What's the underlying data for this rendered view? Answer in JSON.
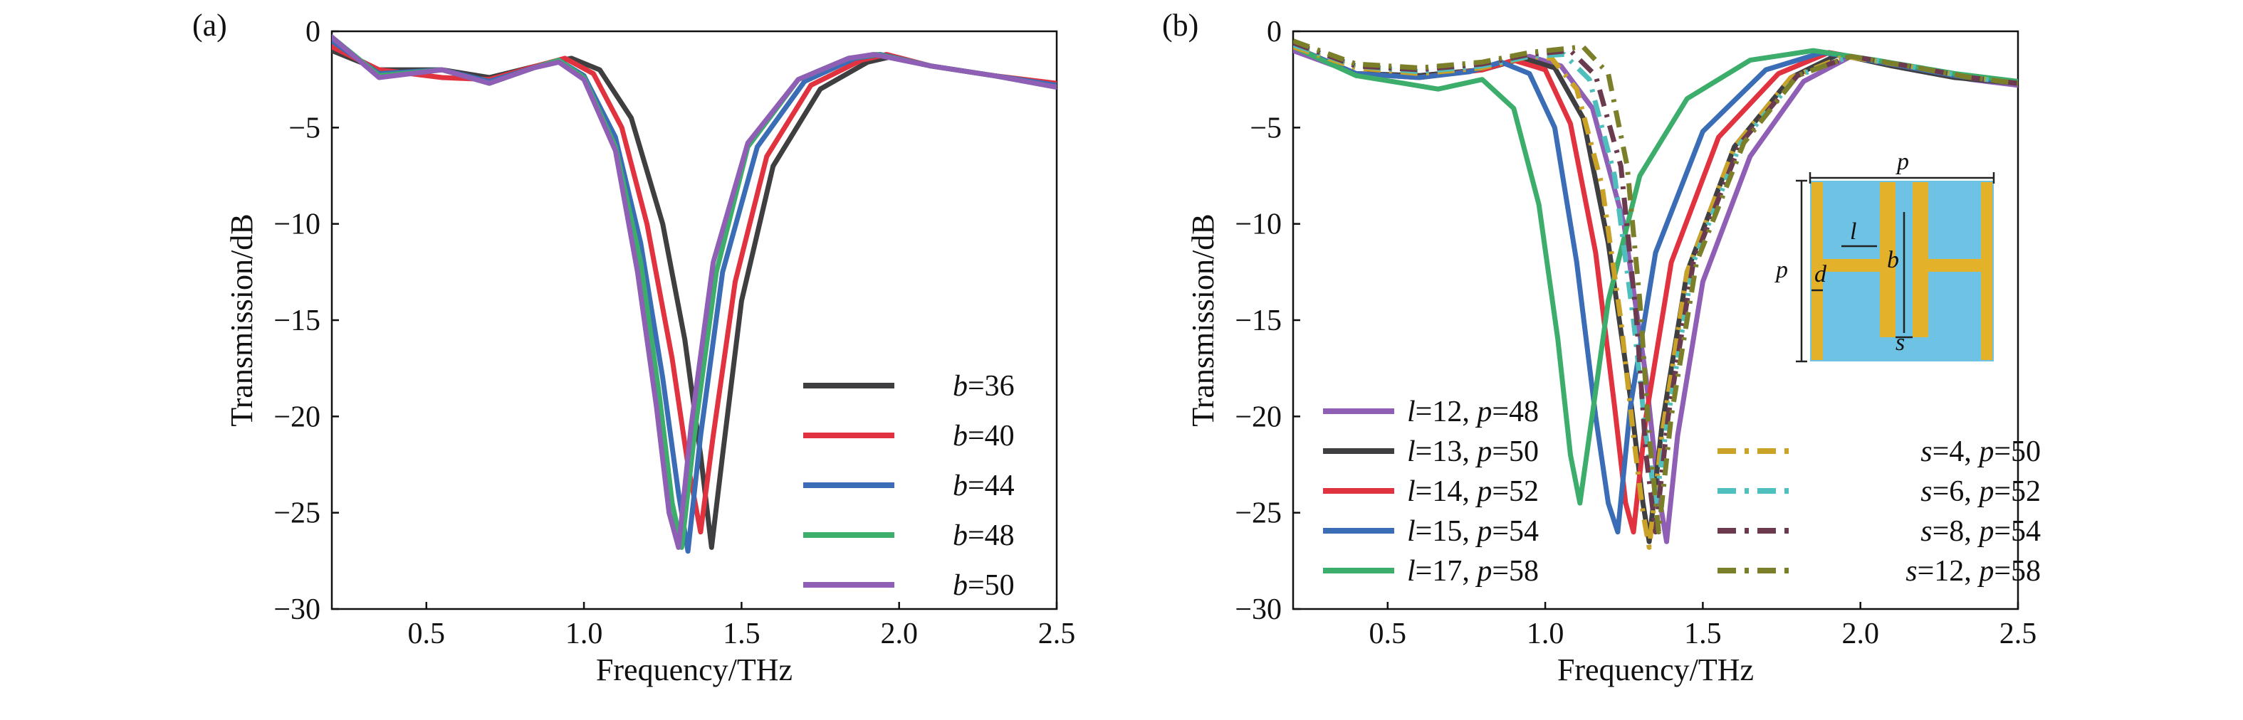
{
  "chart_data": [
    {
      "panel_label": "(a)",
      "type": "line",
      "xlabel": "Frequency/THz",
      "ylabel": "Transmission/dB",
      "xlim": [
        0.2,
        2.5
      ],
      "ylim": [
        -30,
        0
      ],
      "xticks": [
        "0.5",
        "1.0",
        "1.5",
        "2.0",
        "2.5"
      ],
      "yticks": [
        "0",
        "−5",
        "−10",
        "−15",
        "−20",
        "−25",
        "−30"
      ],
      "grid": false,
      "legend_position": "bottom-right",
      "series": [
        {
          "name": "b=36",
          "var": "b",
          "val": "=36",
          "color": "#3f3f41",
          "dash": "solid",
          "x": [
            0.2,
            0.35,
            0.55,
            0.7,
            0.85,
            0.96,
            1.05,
            1.15,
            1.25,
            1.32,
            1.37,
            1.405,
            1.44,
            1.5,
            1.6,
            1.75,
            1.9,
            1.98,
            2.1,
            2.3,
            2.5
          ],
          "y": [
            -1.0,
            -2.0,
            -2.0,
            -2.4,
            -1.8,
            -1.4,
            -2.0,
            -4.5,
            -10.0,
            -16.0,
            -22.0,
            -26.8,
            -22.0,
            -14.0,
            -7.0,
            -3.0,
            -1.6,
            -1.3,
            -1.8,
            -2.3,
            -2.8
          ]
        },
        {
          "name": "b=40",
          "var": "b",
          "val": "=40",
          "color": "#e0333f",
          "dash": "solid",
          "x": [
            0.2,
            0.35,
            0.55,
            0.7,
            0.85,
            0.94,
            1.03,
            1.12,
            1.2,
            1.28,
            1.33,
            1.37,
            1.41,
            1.48,
            1.58,
            1.72,
            1.88,
            1.96,
            2.1,
            2.3,
            2.5
          ],
          "y": [
            -0.8,
            -2.0,
            -2.4,
            -2.5,
            -1.8,
            -1.4,
            -2.2,
            -5.0,
            -10.0,
            -17.0,
            -22.5,
            -26.0,
            -21.0,
            -13.0,
            -6.5,
            -2.8,
            -1.5,
            -1.2,
            -1.8,
            -2.3,
            -2.7
          ]
        },
        {
          "name": "b=44",
          "var": "b",
          "val": "=44",
          "color": "#3a6db5",
          "dash": "solid",
          "x": [
            0.2,
            0.35,
            0.55,
            0.7,
            0.84,
            0.92,
            1.0,
            1.1,
            1.18,
            1.25,
            1.3,
            1.33,
            1.37,
            1.44,
            1.55,
            1.7,
            1.86,
            1.94,
            2.1,
            2.3,
            2.5
          ],
          "y": [
            -0.5,
            -2.2,
            -2.0,
            -2.6,
            -1.9,
            -1.5,
            -2.3,
            -5.5,
            -11.0,
            -18.0,
            -24.0,
            -27.0,
            -21.0,
            -12.5,
            -6.0,
            -2.6,
            -1.4,
            -1.2,
            -1.8,
            -2.3,
            -2.8
          ]
        },
        {
          "name": "b=48",
          "var": "b",
          "val": "=48",
          "color": "#3cad6b",
          "dash": "solid",
          "x": [
            0.2,
            0.35,
            0.55,
            0.7,
            0.84,
            0.92,
            1.0,
            1.1,
            1.18,
            1.24,
            1.28,
            1.31,
            1.35,
            1.42,
            1.52,
            1.68,
            1.84,
            1.93,
            2.1,
            2.3,
            2.5
          ],
          "y": [
            -0.3,
            -2.3,
            -2.0,
            -2.7,
            -1.9,
            -1.5,
            -2.4,
            -6.0,
            -12.0,
            -19.0,
            -24.5,
            -26.8,
            -21.0,
            -12.5,
            -6.0,
            -2.5,
            -1.4,
            -1.2,
            -1.8,
            -2.3,
            -2.9
          ]
        },
        {
          "name": "b=50",
          "var": "b",
          "val": "=50",
          "color": "#8e5fb5",
          "dash": "solid",
          "x": [
            0.2,
            0.35,
            0.55,
            0.7,
            0.84,
            0.92,
            1.0,
            1.1,
            1.17,
            1.23,
            1.27,
            1.3,
            1.34,
            1.41,
            1.52,
            1.68,
            1.84,
            1.92,
            2.1,
            2.3,
            2.5
          ],
          "y": [
            -0.3,
            -2.4,
            -2.0,
            -2.7,
            -1.9,
            -1.6,
            -2.5,
            -6.2,
            -12.5,
            -19.5,
            -25.0,
            -26.8,
            -20.5,
            -12.0,
            -5.8,
            -2.5,
            -1.4,
            -1.2,
            -1.8,
            -2.3,
            -2.9
          ]
        }
      ]
    },
    {
      "panel_label": "(b)",
      "type": "line",
      "xlabel": "Frequency/THz",
      "ylabel": "Transmission/dB",
      "xlim": [
        0.2,
        2.5
      ],
      "ylim": [
        -30,
        0
      ],
      "xticks": [
        "0.5",
        "1.0",
        "1.5",
        "2.0",
        "2.5"
      ],
      "yticks": [
        "0",
        "−5",
        "−10",
        "−15",
        "−20",
        "−25",
        "−30"
      ],
      "grid": false,
      "legend_position": "bottom",
      "series": [
        {
          "name": "l=12, p=48",
          "var": "l",
          "val": "=12, ",
          "var2": "p",
          "val2": "=48",
          "color": "#8e5fb5",
          "dash": "solid",
          "x": [
            0.2,
            0.4,
            0.6,
            0.8,
            0.95,
            1.05,
            1.15,
            1.25,
            1.32,
            1.36,
            1.385,
            1.42,
            1.5,
            1.65,
            1.82,
            1.97,
            2.15,
            2.35,
            2.5
          ],
          "y": [
            -1.0,
            -2.2,
            -2.3,
            -2.0,
            -1.3,
            -1.8,
            -4.0,
            -10.0,
            -18.0,
            -24.0,
            -26.5,
            -21.0,
            -13.0,
            -6.5,
            -2.6,
            -1.3,
            -1.9,
            -2.5,
            -2.8
          ]
        },
        {
          "name": "l=13, p=50",
          "var": "l",
          "val": "=13, ",
          "var2": "p",
          "val2": "=50",
          "color": "#3f3f41",
          "dash": "solid",
          "x": [
            0.2,
            0.4,
            0.6,
            0.8,
            0.93,
            1.03,
            1.12,
            1.2,
            1.27,
            1.31,
            1.33,
            1.37,
            1.45,
            1.6,
            1.78,
            1.93,
            2.1,
            2.3,
            2.5
          ],
          "y": [
            -0.8,
            -2.2,
            -2.3,
            -2.0,
            -1.4,
            -1.9,
            -4.5,
            -11.0,
            -19.0,
            -24.5,
            -26.5,
            -20.5,
            -12.5,
            -6.0,
            -2.4,
            -1.2,
            -1.8,
            -2.4,
            -2.7
          ]
        },
        {
          "name": "l=14, p=52",
          "var": "l",
          "val": "=14, ",
          "var2": "p",
          "val2": "=52",
          "color": "#e0333f",
          "dash": "solid",
          "x": [
            0.2,
            0.4,
            0.6,
            0.8,
            0.9,
            1.0,
            1.08,
            1.16,
            1.22,
            1.255,
            1.28,
            1.32,
            1.4,
            1.55,
            1.74,
            1.9,
            2.1,
            2.3,
            2.5
          ],
          "y": [
            -0.8,
            -2.2,
            -2.4,
            -2.0,
            -1.5,
            -2.0,
            -4.8,
            -11.5,
            -19.5,
            -24.5,
            -26.0,
            -20.0,
            -12.0,
            -5.5,
            -2.2,
            -1.1,
            -1.7,
            -2.3,
            -2.7
          ]
        },
        {
          "name": "l=15, p=54",
          "var": "l",
          "val": "=15, ",
          "var2": "p",
          "val2": "=54",
          "color": "#3a6db5",
          "dash": "solid",
          "x": [
            0.2,
            0.4,
            0.6,
            0.76,
            0.86,
            0.95,
            1.03,
            1.1,
            1.16,
            1.2,
            1.23,
            1.27,
            1.35,
            1.5,
            1.7,
            1.88,
            2.1,
            2.3,
            2.5
          ],
          "y": [
            -0.8,
            -2.2,
            -2.4,
            -2.1,
            -1.6,
            -2.2,
            -5.0,
            -12.0,
            -20.0,
            -24.5,
            -26.0,
            -19.5,
            -11.5,
            -5.2,
            -2.0,
            -1.1,
            -1.7,
            -2.3,
            -2.7
          ]
        },
        {
          "name": "l=17, p=58",
          "var": "l",
          "val": "=17, ",
          "var2": "p",
          "val2": "=58",
          "color": "#3cad6b",
          "dash": "solid",
          "x": [
            0.2,
            0.4,
            0.55,
            0.66,
            0.8,
            0.9,
            0.98,
            1.04,
            1.08,
            1.11,
            1.14,
            1.2,
            1.3,
            1.45,
            1.65,
            1.85,
            2.05,
            2.3,
            2.5
          ],
          "y": [
            -0.8,
            -2.3,
            -2.7,
            -3.0,
            -2.5,
            -4.0,
            -9.0,
            -16.0,
            -22.0,
            -24.5,
            -21.0,
            -14.0,
            -7.5,
            -3.5,
            -1.5,
            -1.0,
            -1.5,
            -2.2,
            -2.6
          ]
        },
        {
          "name": "s=4, p=50",
          "var": "s",
          "val": "=4, ",
          "var2": "p",
          "val2": "=50",
          "color": "#c9a227",
          "dash": "dashdot",
          "x": [
            0.2,
            0.4,
            0.6,
            0.8,
            0.95,
            1.02,
            1.1,
            1.18,
            1.24,
            1.28,
            1.31,
            1.33,
            1.37,
            1.45,
            1.6,
            1.78,
            1.95,
            2.15,
            2.35,
            2.5
          ],
          "y": [
            -0.8,
            -1.9,
            -2.2,
            -1.9,
            -1.3,
            -1.4,
            -3.0,
            -8.0,
            -15.0,
            -21.0,
            -25.0,
            -26.8,
            -21.0,
            -12.5,
            -6.0,
            -2.4,
            -1.3,
            -1.8,
            -2.4,
            -2.7
          ]
        },
        {
          "name": "s=6, p=52",
          "var": "s",
          "val": "=6, ",
          "var2": "p",
          "val2": "=52",
          "color": "#4fbfbd",
          "dash": "dashdot",
          "x": [
            0.2,
            0.4,
            0.6,
            0.8,
            0.95,
            1.06,
            1.14,
            1.22,
            1.28,
            1.32,
            1.35,
            1.39,
            1.47,
            1.62,
            1.8,
            1.97,
            2.15,
            2.35,
            2.5
          ],
          "y": [
            -0.7,
            -1.8,
            -2.1,
            -1.8,
            -1.3,
            -1.2,
            -2.5,
            -7.5,
            -15.0,
            -21.0,
            -24.5,
            -20.0,
            -12.0,
            -5.8,
            -2.3,
            -1.3,
            -1.8,
            -2.4,
            -2.7
          ]
        },
        {
          "name": "s=8, p=54",
          "var": "s",
          "val": "=8, ",
          "var2": "p",
          "val2": "=54",
          "color": "#6b3a4e",
          "dash": "dashdot",
          "x": [
            0.2,
            0.4,
            0.6,
            0.8,
            0.95,
            1.08,
            1.16,
            1.24,
            1.29,
            1.32,
            1.35,
            1.39,
            1.47,
            1.62,
            1.8,
            1.97,
            2.15,
            2.35,
            2.5
          ],
          "y": [
            -0.6,
            -1.8,
            -2.0,
            -1.7,
            -1.2,
            -1.0,
            -2.3,
            -7.0,
            -15.0,
            -22.0,
            -26.0,
            -20.0,
            -12.0,
            -5.8,
            -2.3,
            -1.3,
            -1.8,
            -2.4,
            -2.7
          ]
        },
        {
          "name": "s=12, p=58",
          "var": "s",
          "val": "=12, ",
          "var2": "p",
          "val2": "=58",
          "color": "#7b7f2a",
          "dash": "dashdot",
          "x": [
            0.2,
            0.4,
            0.6,
            0.8,
            0.95,
            1.12,
            1.2,
            1.26,
            1.3,
            1.33,
            1.36,
            1.4,
            1.48,
            1.63,
            1.8,
            1.97,
            2.15,
            2.35,
            2.5
          ],
          "y": [
            -0.5,
            -1.7,
            -1.9,
            -1.6,
            -1.1,
            -0.8,
            -2.2,
            -7.0,
            -14.0,
            -21.0,
            -26.0,
            -20.0,
            -12.0,
            -5.8,
            -2.3,
            -1.3,
            -1.8,
            -2.4,
            -2.7
          ]
        }
      ],
      "inset": {
        "label_p_top": "p",
        "label_p_left": "p",
        "label_l": "l",
        "label_b": "b",
        "label_d": "d",
        "label_s": "s",
        "bg_color": "#6ec3e4",
        "metal_color": "#e3b22a"
      }
    }
  ]
}
